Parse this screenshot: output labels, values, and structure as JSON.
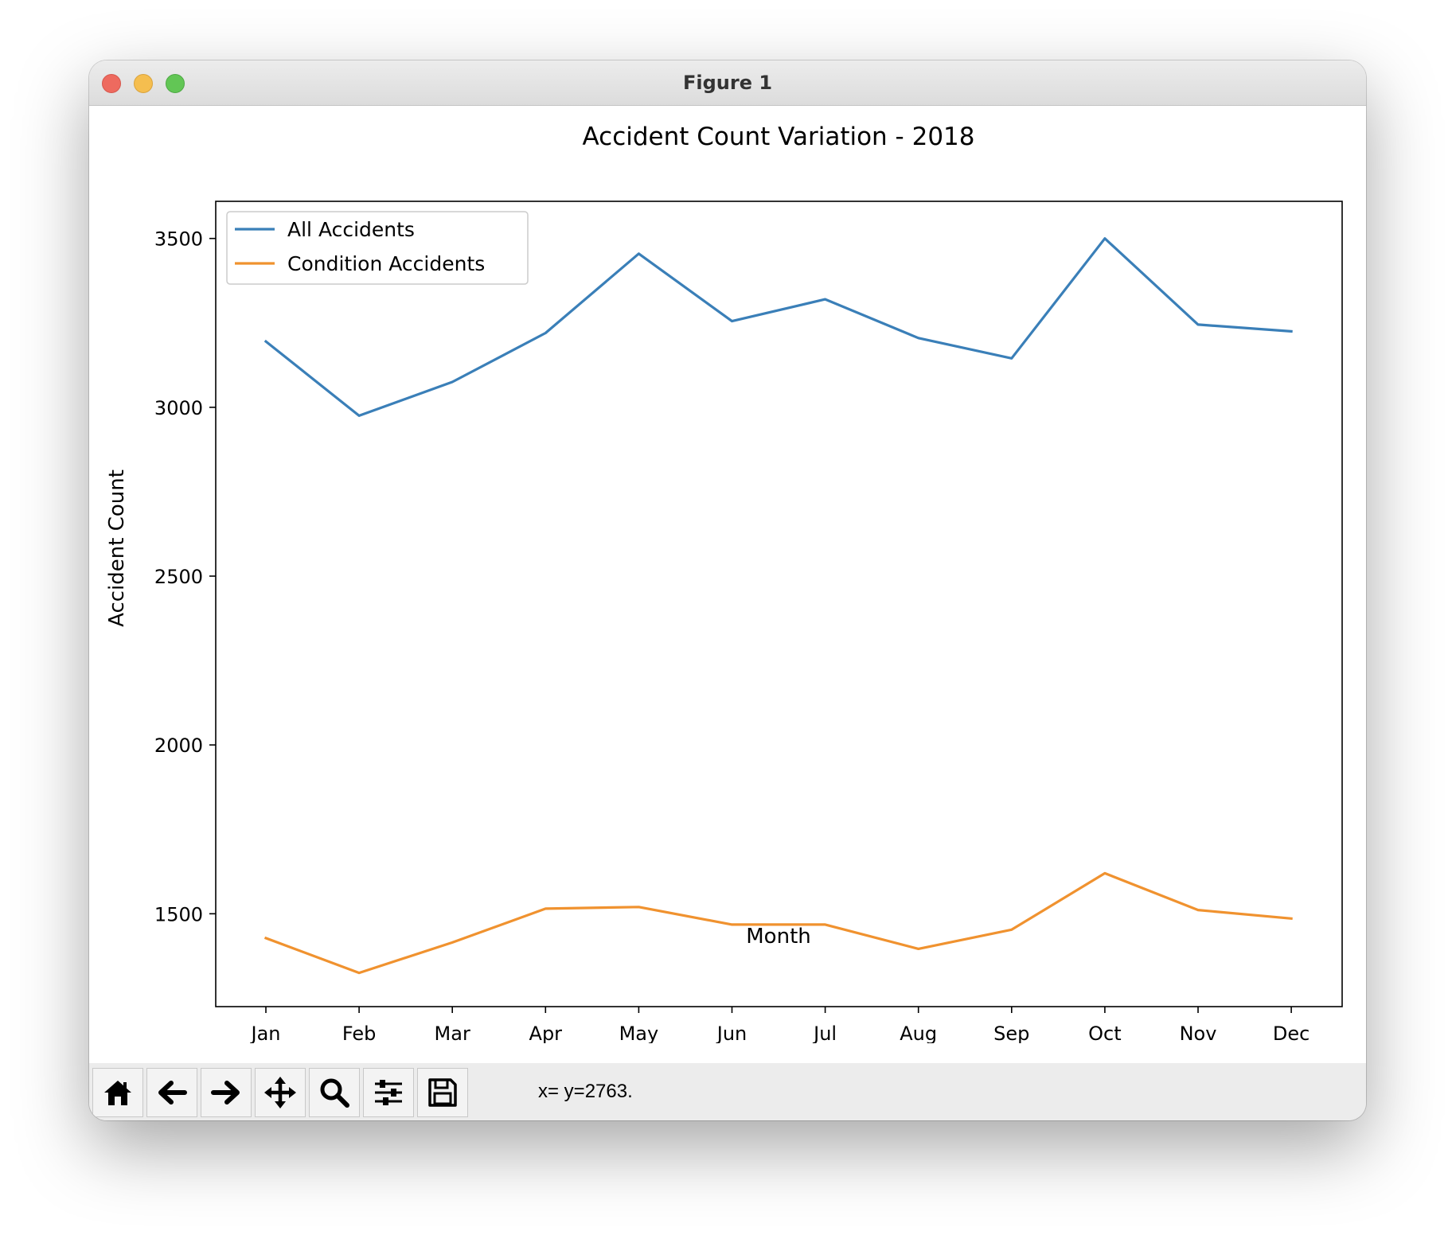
{
  "window": {
    "title": "Figure 1"
  },
  "toolbar": {
    "buttons": [
      {
        "name": "home-button",
        "icon": "home-icon"
      },
      {
        "name": "back-button",
        "icon": "arrow-left-icon"
      },
      {
        "name": "forward-button",
        "icon": "arrow-right-icon"
      },
      {
        "name": "pan-button",
        "icon": "move-icon"
      },
      {
        "name": "zoom-button",
        "icon": "magnifier-icon"
      },
      {
        "name": "configure-subplots-button",
        "icon": "sliders-icon"
      },
      {
        "name": "save-button",
        "icon": "floppy-disk-icon"
      }
    ],
    "coordinates": "x= y=2763."
  },
  "chart_data": {
    "type": "line",
    "title": "Accident Count Variation - 2018",
    "xlabel": "Month",
    "ylabel": "Accident Count",
    "categories": [
      "Jan",
      "Feb",
      "Mar",
      "Apr",
      "May",
      "Jun",
      "Jul",
      "Aug",
      "Sep",
      "Oct",
      "Nov",
      "Dec"
    ],
    "ylim": [
      1225,
      3610
    ],
    "yticks": [
      1500,
      2000,
      2500,
      3000,
      3500
    ],
    "grid": false,
    "legend_position": "upper-left",
    "series": [
      {
        "name": "All Accidents",
        "color": "#3a7fb8",
        "values": [
          3195,
          2975,
          3075,
          3220,
          3455,
          3255,
          3320,
          3205,
          3145,
          3500,
          3245,
          3225
        ]
      },
      {
        "name": "Condition Accidents",
        "color": "#f0922f",
        "values": [
          1428,
          1325,
          1415,
          1515,
          1520,
          1468,
          1468,
          1396,
          1453,
          1620,
          1511,
          1486
        ]
      }
    ]
  }
}
